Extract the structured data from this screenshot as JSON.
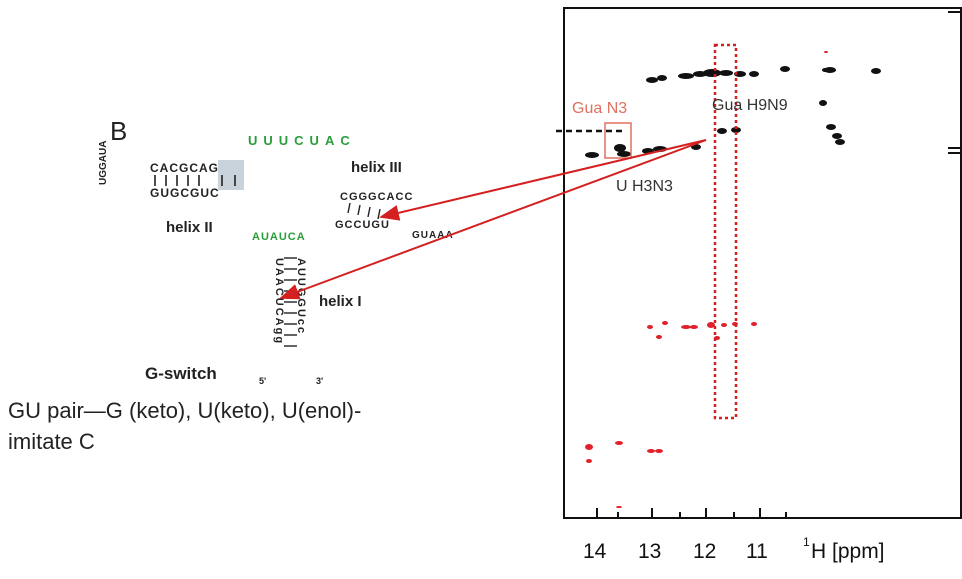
{
  "figure": {
    "panel_label": "B",
    "structure": {
      "title": "G-switch",
      "five_prime": "5'",
      "three_prime": "3'",
      "helix_labels": [
        "helix II",
        "helix III",
        "helix I"
      ],
      "helix2_top": "CACGCAG",
      "helix2_bottom": "GUGCGUC",
      "hairpin_loop": "UGGAUA",
      "loop_green": "UUUCUAC",
      "helix3_top": "CGGGCACC",
      "helix3_bottom": "GCCUGU",
      "helix3_loop": "GUAAA",
      "junction": "AUAUCA",
      "helix1_left": "UAACUCAgg",
      "helix1_right": "AUUGGUcc"
    },
    "nmr": {
      "annotations": [
        "Gua N3",
        "Gua H9N9",
        "U H3N3"
      ],
      "x_ticks": [
        "14",
        "13",
        "12",
        "11"
      ],
      "x_label_sup": "1",
      "x_label": "H [ppm]",
      "colors": {
        "positive": "#111111",
        "negative": "#e0202a",
        "arrow": "#d42020",
        "green": "#2a9d3a"
      }
    },
    "caption_lines": [
      "GU pair—G (keto), U(keto), U(enol)-",
      "imitate C"
    ]
  }
}
